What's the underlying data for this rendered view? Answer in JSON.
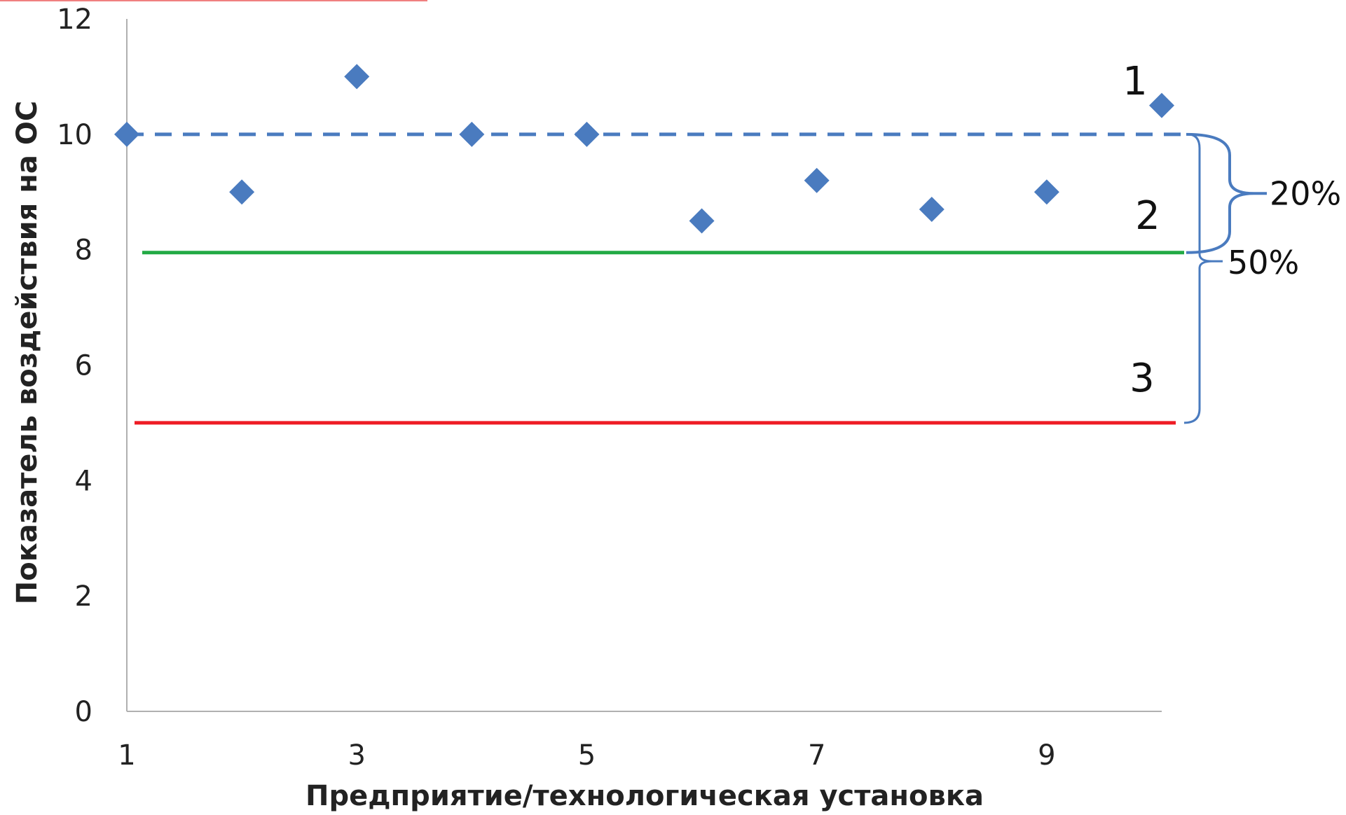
{
  "colors": {
    "axis": "#b0b0b0",
    "marker": "#4a7bbf",
    "level_dashed": "#4a7bbf",
    "level_green": "#22aa44",
    "level_red": "#ee1c25",
    "bracket": "#4a7bbf",
    "corner_line": "#f08080"
  },
  "chart_data": {
    "type": "scatter",
    "title": "",
    "xlabel": "Предприятие/технологическая установка",
    "ylabel": "Показатель воздействия на ОС",
    "xlim": [
      1,
      10
    ],
    "ylim": [
      0,
      12
    ],
    "x_ticks": [
      1,
      3,
      5,
      7,
      9
    ],
    "y_ticks": [
      0,
      2,
      4,
      6,
      8,
      10,
      12
    ],
    "grid": false,
    "series": [
      {
        "marker": "diamond",
        "x": [
          1,
          2,
          3,
          4,
          5,
          6,
          7,
          8,
          9,
          10
        ],
        "y": [
          10,
          9,
          11,
          10,
          10,
          8.5,
          9.2,
          8.7,
          9,
          10.5
        ]
      }
    ],
    "reference_lines": [
      {
        "id": "1",
        "y": 10,
        "style": "dashed",
        "color_key": "level_dashed"
      },
      {
        "id": "2",
        "y": 7.95,
        "style": "solid",
        "color_key": "level_green"
      },
      {
        "id": "3",
        "y": 5,
        "style": "solid",
        "color_key": "level_red"
      }
    ],
    "annotations": {
      "line_labels": [
        "1",
        "2",
        "3"
      ],
      "bracket_upper_label": "20%",
      "bracket_lower_label": "50%"
    }
  }
}
